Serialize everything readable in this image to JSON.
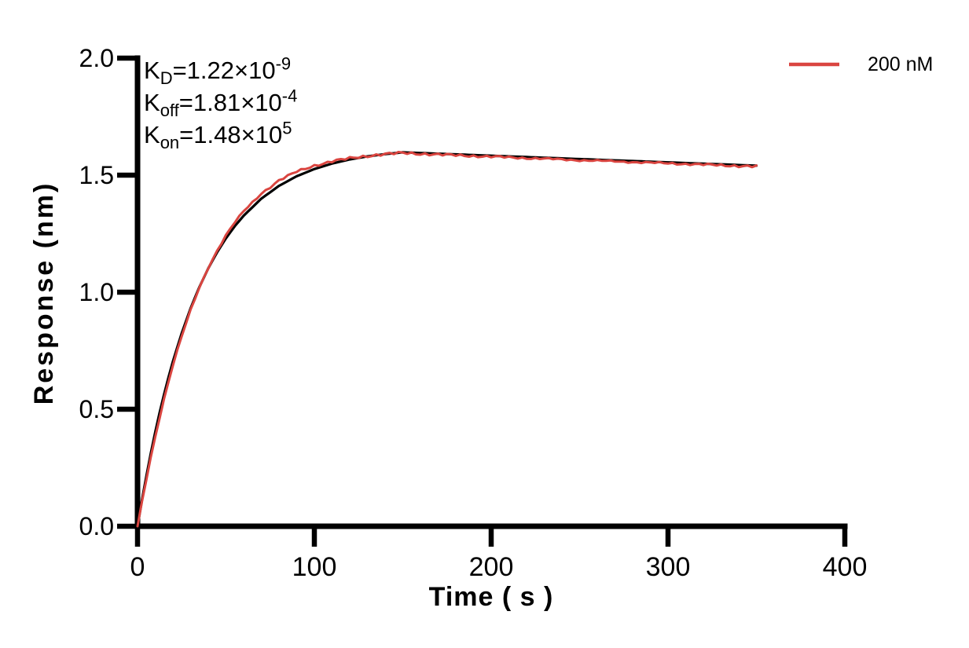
{
  "chart_data": {
    "type": "line",
    "title": "",
    "xlabel": "Time ( s )",
    "ylabel": "Response (nm)",
    "xlim": [
      0,
      400
    ],
    "ylim": [
      0,
      2
    ],
    "grid": false,
    "axis_color": "#000000",
    "x_tick_values": [
      0,
      100,
      200,
      300,
      400
    ],
    "x_tick_labels": [
      "0",
      "100",
      "200",
      "300",
      "400"
    ],
    "y_tick_values": [
      0,
      0.5,
      1,
      1.5,
      2
    ],
    "y_tick_labels": [
      "0.0",
      "0.5",
      "1.0",
      "1.5",
      "2.0"
    ],
    "legend": {
      "position": "top-right",
      "entries": [
        {
          "label": "200 nM",
          "color": "#da4540"
        }
      ]
    },
    "annotations": [
      {
        "base": "K",
        "sub": "D",
        "body": "=1.22×10",
        "sup": "-9"
      },
      {
        "base": "K",
        "sub": "off",
        "body": "=1.81×10",
        "sup": "-4"
      },
      {
        "base": "K",
        "sub": "on",
        "body": "=1.48×10",
        "sup": "5"
      }
    ],
    "series": [
      {
        "name": "fit",
        "color": "#000000",
        "stroke_width": 3.2,
        "noise_amplitude": 0,
        "points": [
          [
            0,
            0
          ],
          [
            2.5,
            0.1114
          ],
          [
            5,
            0.2152
          ],
          [
            7.5,
            0.3117
          ],
          [
            10,
            0.4018
          ],
          [
            12.5,
            0.4855
          ],
          [
            15,
            0.5636
          ],
          [
            17.5,
            0.6362
          ],
          [
            20,
            0.7039
          ],
          [
            25,
            0.8256
          ],
          [
            30,
            0.931
          ],
          [
            35,
            1.0225
          ],
          [
            40,
            1.1018
          ],
          [
            45,
            1.1706
          ],
          [
            50,
            1.2301
          ],
          [
            55,
            1.2821
          ],
          [
            60,
            1.3266
          ],
          [
            70,
            1.3997
          ],
          [
            80,
            1.4543
          ],
          [
            90,
            1.4954
          ],
          [
            100,
            1.5262
          ],
          [
            110,
            1.5495
          ],
          [
            120,
            1.567
          ],
          [
            130,
            1.5801
          ],
          [
            140,
            1.59
          ],
          [
            150,
            1.5975
          ],
          [
            170,
            1.5917
          ],
          [
            190,
            1.586
          ],
          [
            210,
            1.5802
          ],
          [
            230,
            1.5745
          ],
          [
            250,
            1.5688
          ],
          [
            270,
            1.5631
          ],
          [
            290,
            1.5575
          ],
          [
            310,
            1.5518
          ],
          [
            330,
            1.5462
          ],
          [
            350,
            1.5406
          ]
        ]
      },
      {
        "name": "200 nM",
        "color": "#da4540",
        "stroke_width": 3,
        "noise_amplitude": 0.0035,
        "points": [
          [
            0,
            0
          ],
          [
            2.5,
            0.104
          ],
          [
            5,
            0.2
          ],
          [
            7.5,
            0.295
          ],
          [
            10,
            0.382
          ],
          [
            12.5,
            0.465
          ],
          [
            15,
            0.545
          ],
          [
            17.5,
            0.618
          ],
          [
            20,
            0.688
          ],
          [
            25,
            0.812
          ],
          [
            30,
            0.922
          ],
          [
            35,
            1.02
          ],
          [
            40,
            1.105
          ],
          [
            45,
            1.178
          ],
          [
            50,
            1.243
          ],
          [
            55,
            1.298
          ],
          [
            60,
            1.345
          ],
          [
            70,
            1.422
          ],
          [
            80,
            1.477
          ],
          [
            90,
            1.515
          ],
          [
            100,
            1.541
          ],
          [
            110,
            1.559
          ],
          [
            120,
            1.572
          ],
          [
            130,
            1.582
          ],
          [
            140,
            1.59
          ],
          [
            150,
            1.595
          ],
          [
            160,
            1.591
          ],
          [
            170,
            1.588
          ],
          [
            190,
            1.582
          ],
          [
            210,
            1.576
          ],
          [
            230,
            1.57
          ],
          [
            250,
            1.564
          ],
          [
            270,
            1.559
          ],
          [
            290,
            1.553
          ],
          [
            310,
            1.548
          ],
          [
            330,
            1.542
          ],
          [
            350,
            1.537
          ]
        ]
      }
    ]
  }
}
